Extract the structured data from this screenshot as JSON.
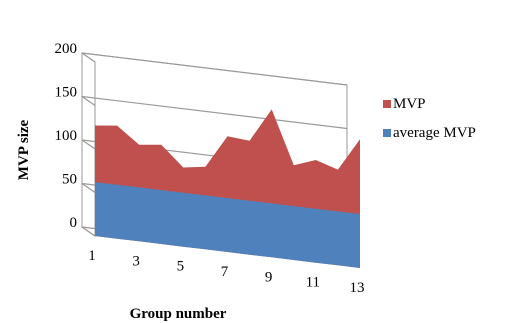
{
  "chart_data": {
    "type": "area",
    "stacked": false,
    "perspective": "3d",
    "x": [
      1,
      2,
      3,
      4,
      5,
      6,
      7,
      8,
      9,
      10,
      11,
      12,
      13
    ],
    "x_tick_labels": [
      "1",
      "3",
      "5",
      "7",
      "9",
      "11",
      "13"
    ],
    "y_tick_labels": [
      "0",
      "50",
      "100",
      "150",
      "200"
    ],
    "ylim": [
      0,
      200
    ],
    "xlabel": "Group number",
    "ylabel": "MVP size",
    "legend_position": "right",
    "series": [
      {
        "name": "MVP",
        "color": "#c0504d",
        "values": [
          127,
          130,
          111,
          114,
          91,
          95,
          133,
          131,
          170,
          109,
          118,
          110,
          148
        ]
      },
      {
        "name": "average MVP",
        "color": "#4f81bd",
        "values": [
          62,
          62,
          62,
          62,
          62,
          62,
          62,
          62,
          62,
          62,
          62,
          62,
          62
        ]
      }
    ],
    "grid": true
  }
}
